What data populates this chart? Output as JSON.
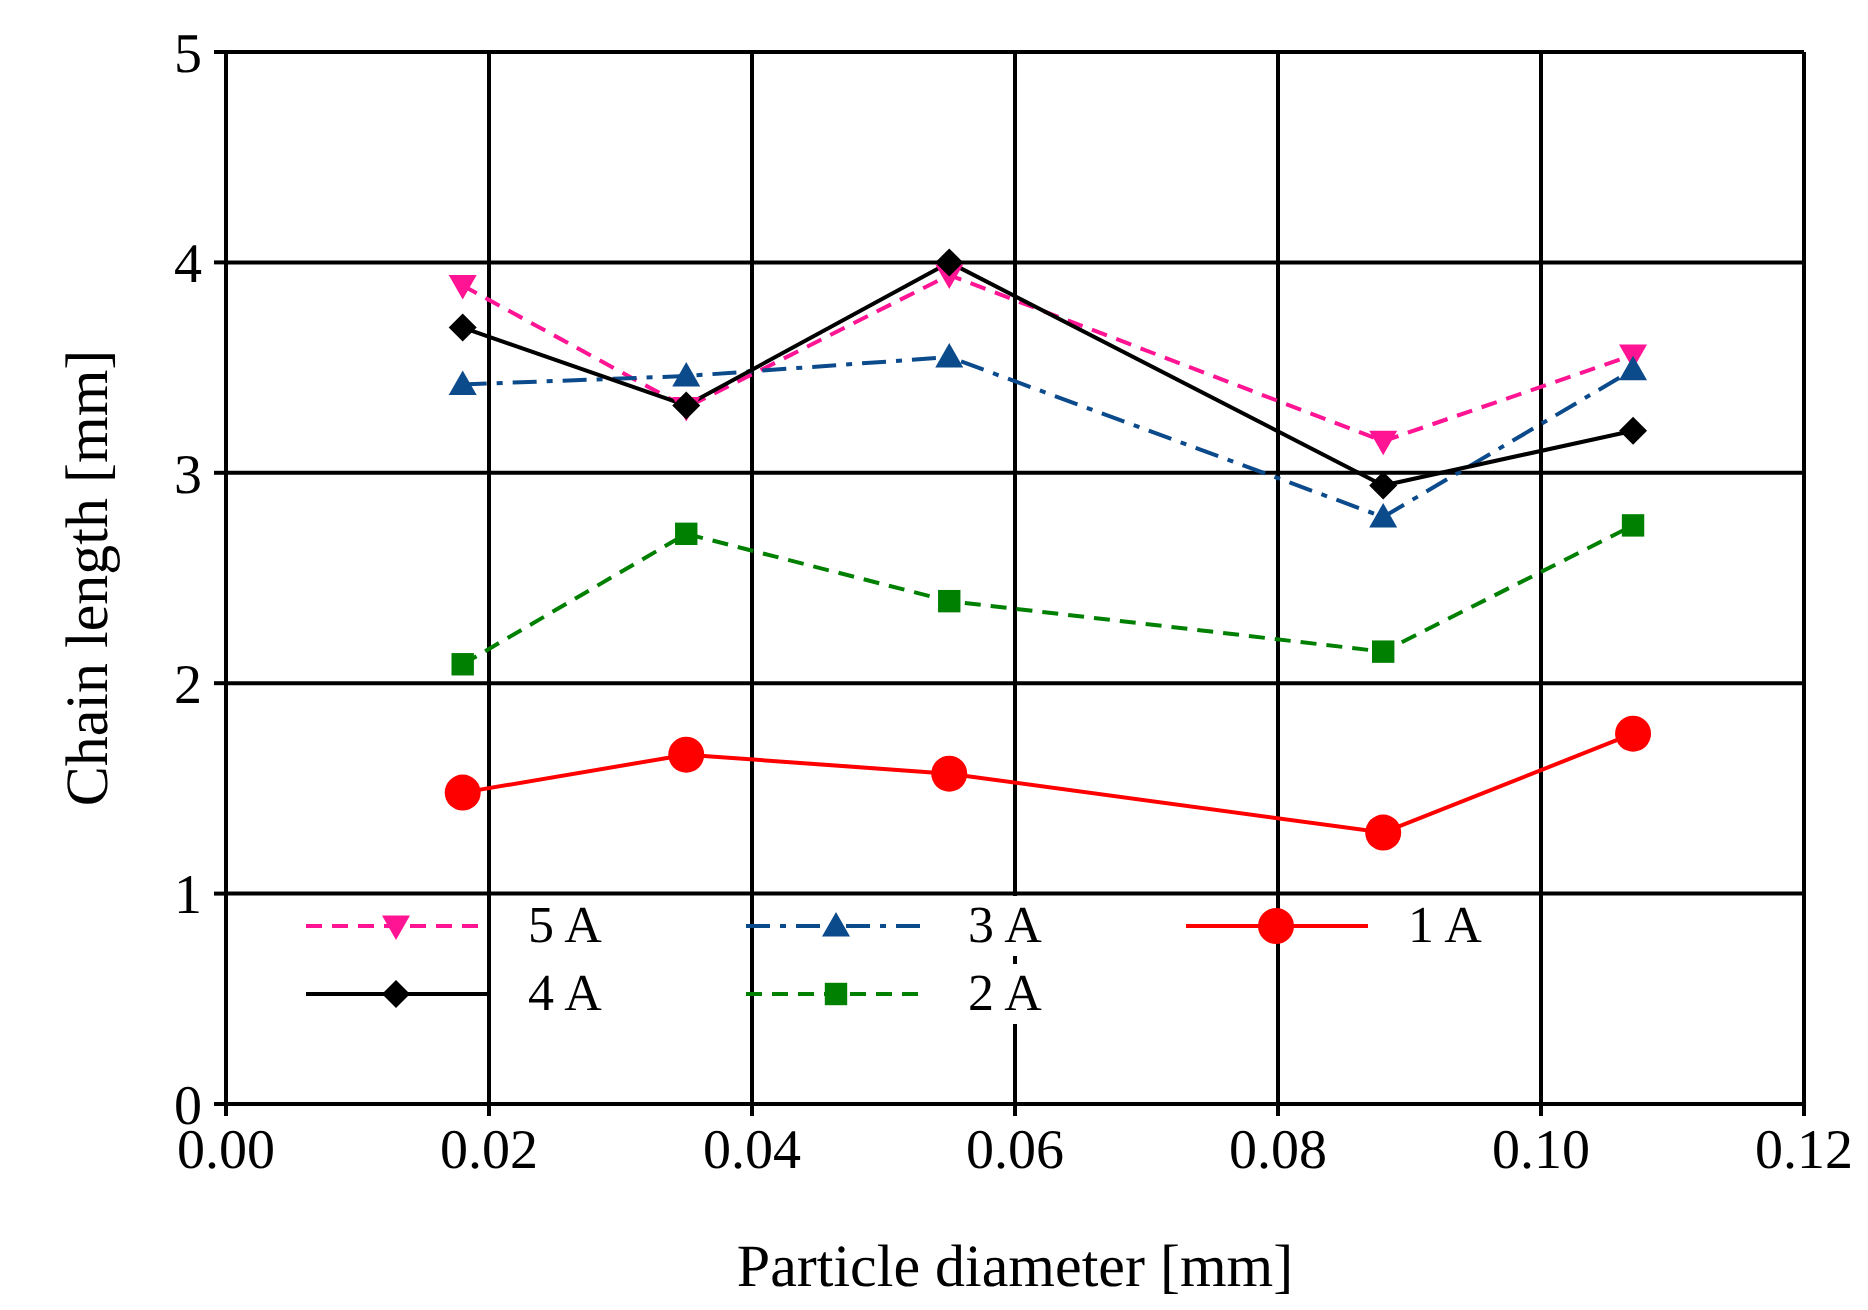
{
  "chart_data": {
    "type": "line",
    "xlabel": "Particle diameter [mm]",
    "ylabel": "Chain length [mm]",
    "x": [
      0.018,
      0.035,
      0.055,
      0.088,
      0.107
    ],
    "xlim": [
      0,
      0.12
    ],
    "xticks": [
      {
        "value": 0,
        "label": "0.00"
      },
      {
        "value": 0.02,
        "label": "0.02"
      },
      {
        "value": 0.04,
        "label": "0.04"
      },
      {
        "value": 0.06,
        "label": "0.06"
      },
      {
        "value": 0.08,
        "label": "0.08"
      },
      {
        "value": 0.1,
        "label": "0.10"
      },
      {
        "value": 0.12,
        "label": "0.12"
      }
    ],
    "ylim": [
      0,
      5
    ],
    "yticks": [
      0,
      1,
      2,
      3,
      4,
      5
    ],
    "grid": true,
    "legend": "bottom left",
    "series": [
      {
        "name": "5 A",
        "color": "#ff1493",
        "marker": "triangle-down",
        "line_style": "dashed",
        "values": [
          3.89,
          3.31,
          3.94,
          3.15,
          3.56
        ]
      },
      {
        "name": "3 A",
        "color": "#0b4a8b",
        "marker": "triangle",
        "line_style": "dashdot",
        "values": [
          3.42,
          3.46,
          3.55,
          2.79,
          3.49
        ]
      },
      {
        "name": "1 A",
        "color": "#ff0000",
        "marker": "circle",
        "line_style": "solid",
        "values": [
          1.48,
          1.66,
          1.57,
          1.29,
          1.76
        ]
      },
      {
        "name": "4 A",
        "color": "#000000",
        "marker": "diamond",
        "line_style": "solid",
        "values": [
          3.69,
          3.32,
          4.0,
          2.94,
          3.2
        ]
      },
      {
        "name": "2 A",
        "color": "#008000",
        "marker": "square",
        "line_style": "dashed",
        "values": [
          2.09,
          2.71,
          2.39,
          2.15,
          2.75
        ]
      }
    ]
  }
}
